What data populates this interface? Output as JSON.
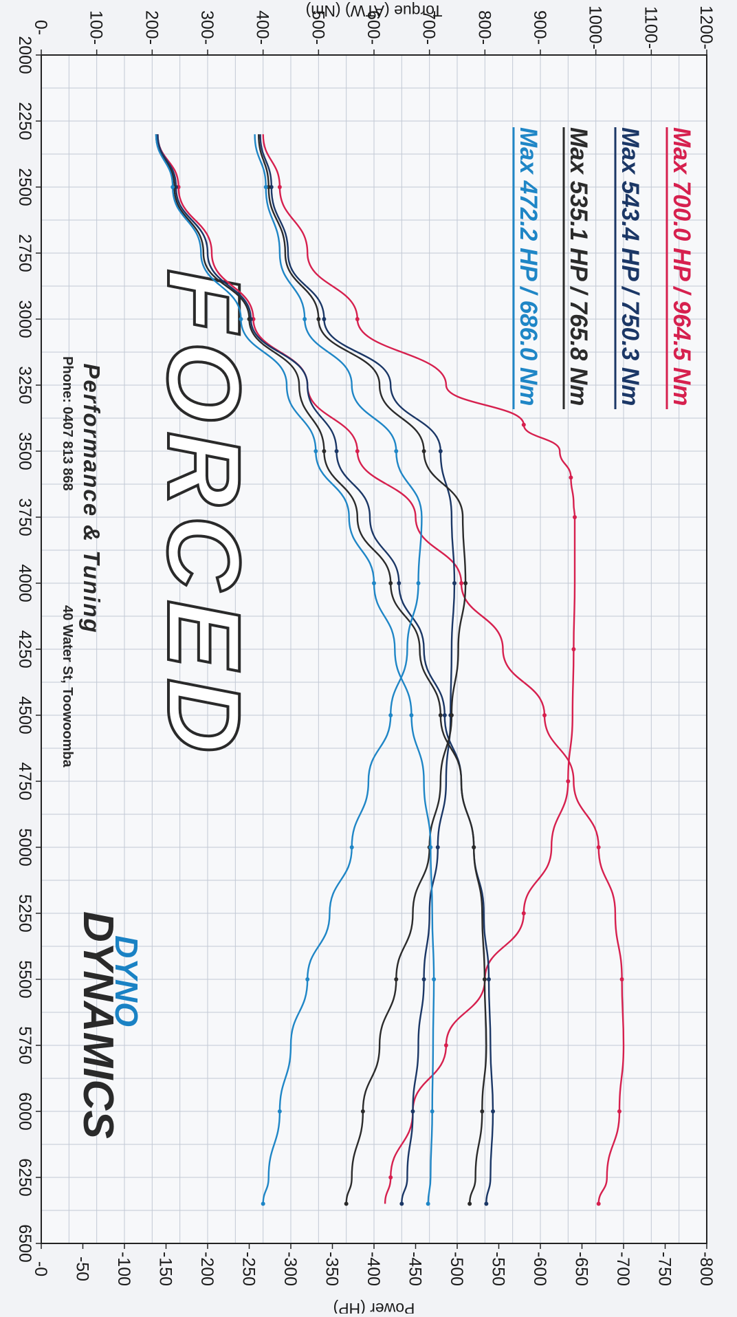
{
  "chart_data": {
    "type": "line",
    "xlabel": "",
    "x_ticks": [
      "2000",
      "2250",
      "2500",
      "2750",
      "3000",
      "3250",
      "3500",
      "3750",
      "4000",
      "4250",
      "4500",
      "4750",
      "5000",
      "5250",
      "5500",
      "5750",
      "6000",
      "6250",
      "6500"
    ],
    "xlim": [
      2000,
      6500
    ],
    "left_axis": {
      "label": "Torque (ATW) (Nm)",
      "ticks": [
        "0",
        "100",
        "200",
        "300",
        "400",
        "500",
        "600",
        "700",
        "800",
        "900",
        "1000",
        "1100",
        "1200"
      ],
      "lim": [
        0,
        1200
      ]
    },
    "right_axis": {
      "label": "Power (HP)",
      "ticks": [
        "0",
        "50",
        "100",
        "150",
        "200",
        "250",
        "300",
        "350",
        "400",
        "450",
        "500",
        "550",
        "600",
        "650",
        "700",
        "750",
        "800"
      ],
      "lim": [
        0,
        800
      ]
    },
    "legend": [
      {
        "text": "Max 700.0 HP / 964.5 Nm",
        "color": "#d6204e"
      },
      {
        "text": "Max 543.4 HP / 750.3 Nm",
        "color": "#1b3766"
      },
      {
        "text": "Max 535.1 HP / 765.8 Nm",
        "color": "#2b2b2b"
      },
      {
        "text": "Max 472.2 HP / 686.0 Nm",
        "color": "#1f86c6"
      }
    ],
    "series": [
      {
        "color": "#d6204e",
        "axis": "left",
        "x": [
          2300,
          2500,
          2750,
          3000,
          3250,
          3400,
          3500,
          3600,
          3700,
          3750,
          4000,
          4250,
          4500,
          4750,
          5000,
          5250,
          5500,
          5750,
          6000,
          6250,
          6350
        ],
        "y": [
          400,
          430,
          480,
          570,
          730,
          870,
          935,
          955,
          960,
          962,
          962,
          960,
          958,
          950,
          920,
          870,
          800,
          730,
          670,
          630,
          620
        ]
      },
      {
        "color": "#d6204e",
        "axis": "right",
        "x": [
          2300,
          2500,
          2750,
          3000,
          3250,
          3500,
          3750,
          4000,
          4250,
          4500,
          4750,
          5000,
          5250,
          5500,
          5750,
          6000,
          6250,
          6350
        ],
        "y": [
          140,
          165,
          205,
          255,
          320,
          380,
          450,
          505,
          555,
          605,
          640,
          670,
          690,
          698,
          700,
          695,
          680,
          670
        ]
      },
      {
        "color": "#1b3766",
        "axis": "left",
        "x": [
          2300,
          2500,
          2750,
          3000,
          3250,
          3500,
          3750,
          4000,
          4250,
          4500,
          4750,
          5000,
          5250,
          5500,
          5750,
          6000,
          6250,
          6350
        ],
        "y": [
          395,
          415,
          445,
          510,
          630,
          720,
          740,
          745,
          740,
          738,
          730,
          715,
          700,
          690,
          680,
          670,
          660,
          650
        ]
      },
      {
        "color": "#1b3766",
        "axis": "right",
        "x": [
          2300,
          2500,
          2750,
          3000,
          3250,
          3500,
          3750,
          4000,
          4250,
          4500,
          4750,
          5000,
          5250,
          5500,
          5750,
          6000,
          6250,
          6350
        ],
        "y": [
          140,
          162,
          200,
          252,
          320,
          355,
          395,
          430,
          460,
          485,
          505,
          520,
          532,
          538,
          540,
          543,
          540,
          535
        ]
      },
      {
        "color": "#2b2b2b",
        "axis": "left",
        "x": [
          2300,
          2500,
          2750,
          3000,
          3250,
          3500,
          3750,
          4000,
          4250,
          4500,
          4750,
          5000,
          5250,
          5500,
          5750,
          6000,
          6250,
          6350
        ],
        "y": [
          392,
          410,
          440,
          500,
          610,
          690,
          760,
          765,
          752,
          740,
          720,
          700,
          670,
          640,
          610,
          580,
          560,
          550
        ]
      },
      {
        "color": "#2b2b2b",
        "axis": "right",
        "x": [
          2300,
          2500,
          2750,
          3000,
          3250,
          3500,
          3750,
          4000,
          4250,
          4500,
          4750,
          5000,
          5250,
          5500,
          5750,
          6000,
          6250,
          6350
        ],
        "y": [
          138,
          160,
          195,
          250,
          310,
          340,
          380,
          420,
          455,
          480,
          505,
          520,
          530,
          533,
          535,
          530,
          522,
          515
        ]
      },
      {
        "color": "#1f86c6",
        "axis": "left",
        "x": [
          2300,
          2500,
          2750,
          3000,
          3250,
          3500,
          3750,
          4000,
          4250,
          4500,
          4750,
          5000,
          5250,
          5500,
          5750,
          6000,
          6250,
          6350
        ],
        "y": [
          385,
          405,
          430,
          475,
          560,
          640,
          686,
          680,
          660,
          630,
          590,
          560,
          520,
          480,
          450,
          430,
          410,
          400
        ]
      },
      {
        "color": "#1f86c6",
        "axis": "right",
        "x": [
          2300,
          2500,
          2750,
          3000,
          3250,
          3500,
          3750,
          4000,
          4250,
          4500,
          4750,
          5000,
          5250,
          5500,
          5750,
          6000,
          6250,
          6350
        ],
        "y": [
          138,
          158,
          192,
          240,
          295,
          330,
          370,
          400,
          425,
          445,
          460,
          468,
          470,
          472,
          471,
          470,
          468,
          465
        ]
      }
    ]
  },
  "branding": {
    "logo_main": "FORCED",
    "logo_sub": "Performance & Tuning",
    "phone": "Phone: 0407 813 868",
    "address": "40 Water St, Toowoomba",
    "dyno_top": "DYNO",
    "dyno_bottom": "DYNAMICS"
  }
}
